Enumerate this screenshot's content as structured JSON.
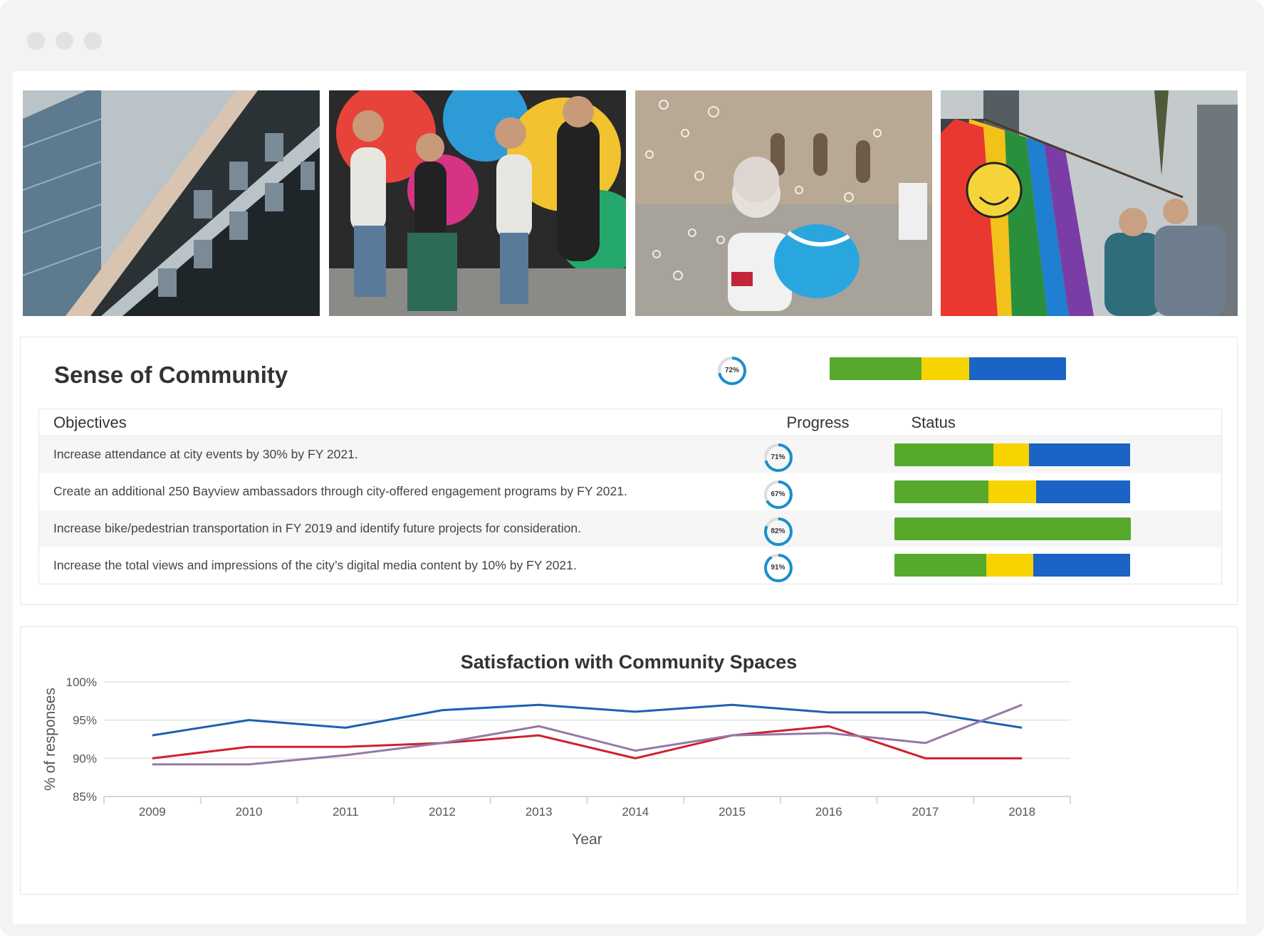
{
  "window": {
    "traffic_lights": [
      "close",
      "minimize",
      "maximize"
    ]
  },
  "photos": [
    {
      "name": "building-photo",
      "alt": "Building facade"
    },
    {
      "name": "friends-mural-photo",
      "alt": "Friends in front of mural"
    },
    {
      "name": "child-bubbles-photo",
      "alt": "Child with balloon and bubbles"
    },
    {
      "name": "rainbow-flag-photo",
      "alt": "Rainbow flag at parade"
    }
  ],
  "community": {
    "title": "Sense of Community",
    "overall_progress": 72,
    "overall_progress_label": "72%",
    "overall_status": [
      0.39,
      0.2,
      0.41
    ],
    "headers": {
      "objectives": "Objectives",
      "progress": "Progress",
      "status": "Status"
    },
    "rows": [
      {
        "objective": "Increase attendance at city events by 30% by FY 2021.",
        "progress": 71,
        "progress_label": "71%",
        "status": [
          0.42,
          0.15,
          0.43
        ]
      },
      {
        "objective": "Create an additional 250 Bayview ambassadors through city-offered engagement programs by FY 2021.",
        "progress": 67,
        "progress_label": "67%",
        "status": [
          0.4,
          0.2,
          0.4
        ]
      },
      {
        "objective": "Increase bike/pedestrian transportation in FY 2019 and identify future projects for consideration.",
        "progress": 82,
        "progress_label": "82%",
        "status": [
          1.0,
          0.0,
          0.0
        ]
      },
      {
        "objective": "Increase the total views and impressions of the city’s digital media content by 10% by FY 2021.",
        "progress": 91,
        "progress_label": "91%",
        "status": [
          0.39,
          0.2,
          0.41
        ]
      }
    ],
    "status_colors": [
      "#56a92b",
      "#f7d300",
      "#1b63c4"
    ],
    "progress_color": "#1a8fc9"
  },
  "chart_data": {
    "type": "line",
    "title": "Satisfaction with Community Spaces",
    "xlabel": "Year",
    "ylabel": "% of responses",
    "x": [
      2009,
      2010,
      2011,
      2012,
      2013,
      2014,
      2015,
      2016,
      2017,
      2018
    ],
    "yticks": [
      "85%",
      "90%",
      "95%",
      "100%"
    ],
    "ylim": [
      85,
      100
    ],
    "grid": true,
    "series": [
      {
        "color": "#1f5fb5",
        "values": [
          93,
          95,
          94,
          96.3,
          97,
          96.1,
          97,
          96,
          96,
          94
        ]
      },
      {
        "color": "#d0202e",
        "values": [
          90,
          91.5,
          91.5,
          92,
          93,
          90,
          93,
          94.2,
          90,
          90
        ]
      },
      {
        "color": "#9379a9",
        "values": [
          89.2,
          89.2,
          90.4,
          92,
          94.2,
          91,
          93,
          93.3,
          92,
          97
        ]
      }
    ]
  }
}
